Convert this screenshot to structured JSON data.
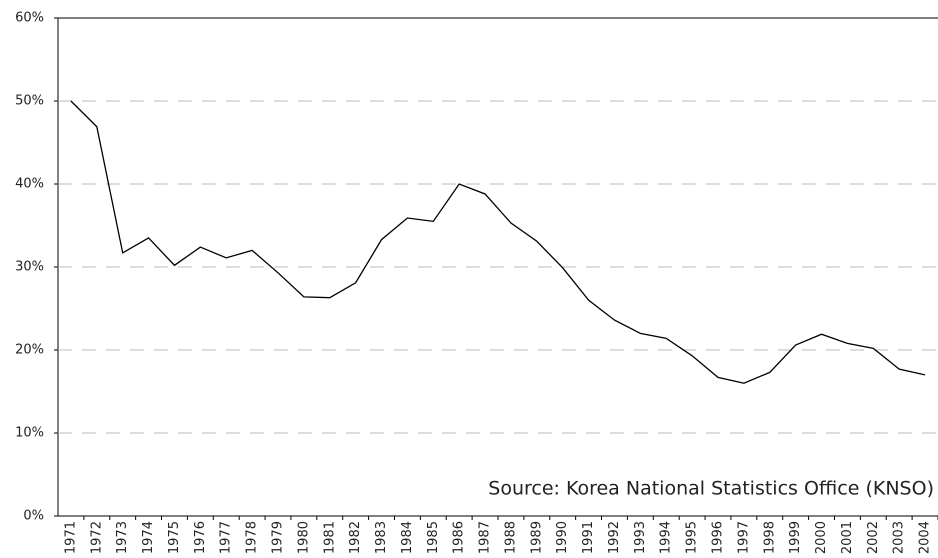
{
  "chart_data": {
    "type": "line",
    "annotation": "Source: Korea National Statistics Office (KNSO)",
    "categories": [
      "1971",
      "1972",
      "1973",
      "1974",
      "1975",
      "1976",
      "1977",
      "1978",
      "1979",
      "1980",
      "1981",
      "1982",
      "1983",
      "1984",
      "1985",
      "1986",
      "1987",
      "1988",
      "1989",
      "1990",
      "1991",
      "1992",
      "1993",
      "1994",
      "1995",
      "1996",
      "1997",
      "1998",
      "1999",
      "2000",
      "2001",
      "2002",
      "2003",
      "2004"
    ],
    "values": [
      50.0,
      46.9,
      31.7,
      33.5,
      30.2,
      32.4,
      31.1,
      32.0,
      29.3,
      26.4,
      26.3,
      28.1,
      33.3,
      35.9,
      35.5,
      40.0,
      38.8,
      35.3,
      33.1,
      29.9,
      26.0,
      23.6,
      22.0,
      21.4,
      19.3,
      16.7,
      16.0,
      17.3,
      20.6,
      21.9,
      20.8,
      20.2,
      17.7,
      17.0
    ],
    "color": "#000000",
    "ylim": [
      0,
      60
    ],
    "yticks": [
      {
        "value": 0,
        "label": "0%"
      },
      {
        "value": 10,
        "label": "10%"
      },
      {
        "value": 20,
        "label": "20%"
      },
      {
        "value": 30,
        "label": "30%"
      },
      {
        "value": 40,
        "label": "40%"
      },
      {
        "value": 50,
        "label": "50%"
      },
      {
        "value": 60,
        "label": "60%"
      }
    ],
    "grid": true
  }
}
